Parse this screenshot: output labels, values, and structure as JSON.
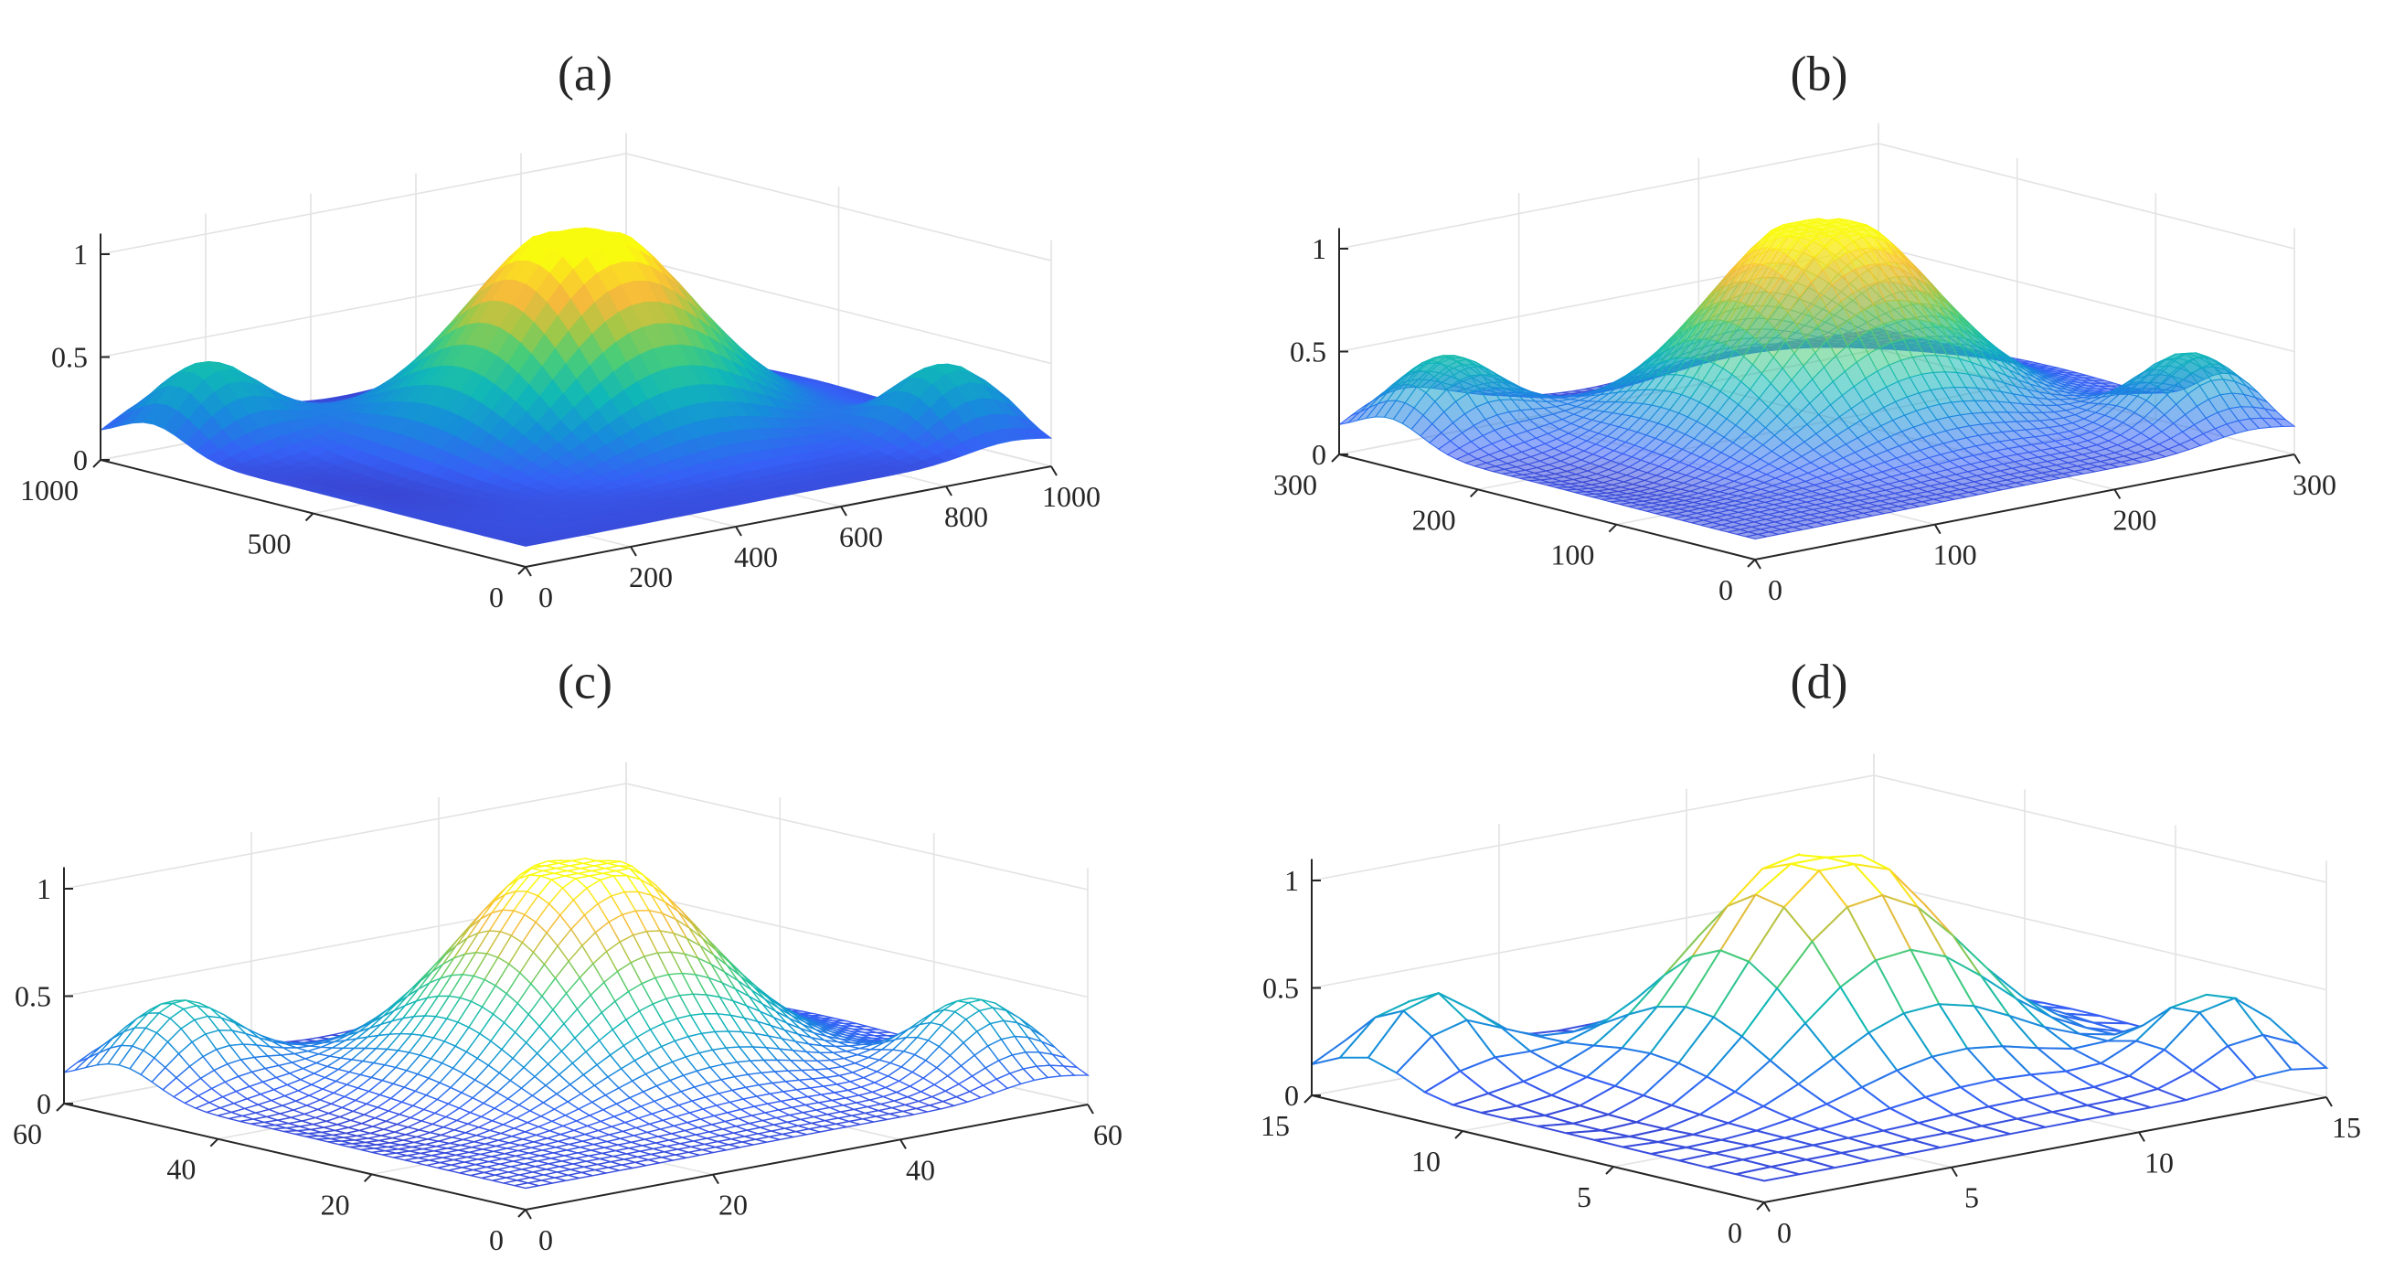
{
  "figure": {
    "panels": [
      {
        "label": "(a)",
        "render": "surface",
        "z_ticks": [
          "0",
          "0.5",
          "1"
        ],
        "x_ticks": [
          "0",
          "200",
          "400",
          "600",
          "800",
          "1000"
        ],
        "y_ticks": [
          "0",
          "500",
          "1000"
        ]
      },
      {
        "label": "(b)",
        "render": "fine-mesh",
        "z_ticks": [
          "0",
          "0.5",
          "1"
        ],
        "x_ticks": [
          "0",
          "100",
          "200",
          "300"
        ],
        "y_ticks": [
          "0",
          "100",
          "200",
          "300"
        ]
      },
      {
        "label": "(c)",
        "render": "mesh",
        "z_ticks": [
          "0",
          "0.5",
          "1"
        ],
        "x_ticks": [
          "0",
          "20",
          "40",
          "60"
        ],
        "y_ticks": [
          "0",
          "20",
          "40",
          "60"
        ]
      },
      {
        "label": "(d)",
        "render": "coarse-mesh",
        "z_ticks": [
          "0",
          "0.5",
          "1"
        ],
        "x_ticks": [
          "0",
          "5",
          "10",
          "15"
        ],
        "y_ticks": [
          "0",
          "5",
          "10",
          "15"
        ]
      }
    ]
  },
  "chart_data": [
    {
      "type": "surface",
      "title": "(a)",
      "x": {
        "ticks": [
          0,
          200,
          400,
          600,
          800,
          1000
        ],
        "range": [
          0,
          1000
        ]
      },
      "y": {
        "ticks": [
          0,
          500,
          1000
        ],
        "range": [
          0,
          1000
        ]
      },
      "z": {
        "ticks": [
          0,
          0.5,
          1
        ],
        "range": [
          0,
          1
        ]
      },
      "grid_resolution": 1000,
      "colormap": "parula",
      "style": "smooth shaded surface"
    },
    {
      "type": "surface",
      "title": "(b)",
      "x": {
        "ticks": [
          0,
          100,
          200,
          300
        ],
        "range": [
          0,
          300
        ]
      },
      "y": {
        "ticks": [
          0,
          100,
          200,
          300
        ],
        "range": [
          0,
          300
        ]
      },
      "z": {
        "ticks": [
          0,
          0.5,
          1
        ],
        "range": [
          0,
          1
        ]
      },
      "grid_resolution": 300,
      "colormap": "parula",
      "style": "dense mesh"
    },
    {
      "type": "surface",
      "title": "(c)",
      "x": {
        "ticks": [
          0,
          20,
          40,
          60
        ],
        "range": [
          0,
          60
        ]
      },
      "y": {
        "ticks": [
          0,
          20,
          40,
          60
        ],
        "range": [
          0,
          60
        ]
      },
      "z": {
        "ticks": [
          0,
          0.5,
          1
        ],
        "range": [
          0,
          1
        ]
      },
      "grid_resolution": 60,
      "colormap": "parula",
      "style": "wireframe mesh"
    },
    {
      "type": "surface",
      "title": "(d)",
      "x": {
        "ticks": [
          0,
          5,
          10,
          15
        ],
        "range": [
          0,
          15
        ]
      },
      "y": {
        "ticks": [
          0,
          5,
          10,
          15
        ],
        "range": [
          0,
          15
        ]
      },
      "z": {
        "ticks": [
          0,
          0.5,
          1
        ],
        "range": [
          0,
          1
        ]
      },
      "grid_resolution": 15,
      "colormap": "parula",
      "style": "coarse wireframe mesh"
    }
  ]
}
